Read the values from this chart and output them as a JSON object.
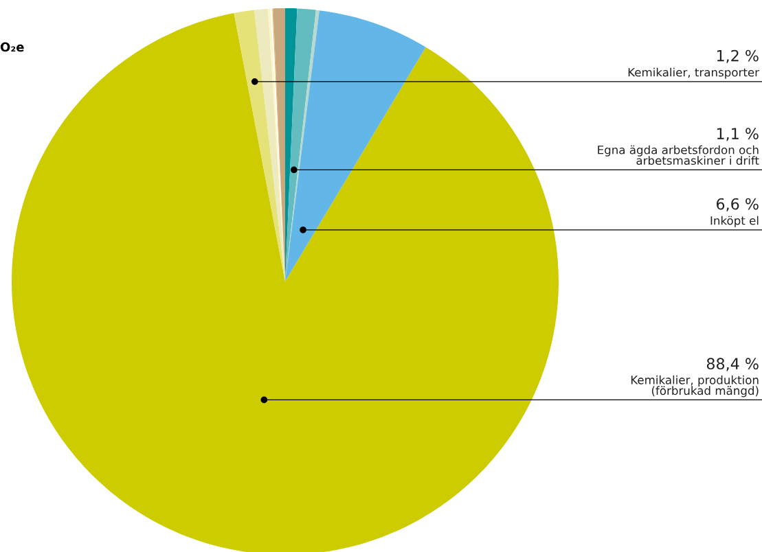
{
  "chart_data": {
    "type": "pie",
    "title": "O₂e",
    "categories": [
      null,
      "Egna ägda arbetsfordon och\narbetsmaskiner i drift",
      null,
      "Inköpt el",
      "Kemikalier, produktion\n(förbrukad mängd)",
      "Kemikalier, transporter",
      null,
      null,
      null,
      null,
      null
    ],
    "values": [
      0.7,
      1.1,
      0.2,
      6.6,
      88.4,
      1.2,
      0.8,
      0.15,
      0.1,
      0.05,
      0.7
    ],
    "value_labels": [
      null,
      "1,1 %",
      null,
      "6,6 %",
      "88,4 %",
      "1,2 %",
      null,
      null,
      null,
      null,
      null
    ],
    "colors": [
      "#009499",
      "#62bcc0",
      "#b8d9d0",
      "#62b6e8",
      "#cccc00",
      "#e5e27a",
      "#eeeabf",
      "#fdf6c8",
      "#ffffff",
      "#f0b060",
      "#c8a97e"
    ]
  }
}
